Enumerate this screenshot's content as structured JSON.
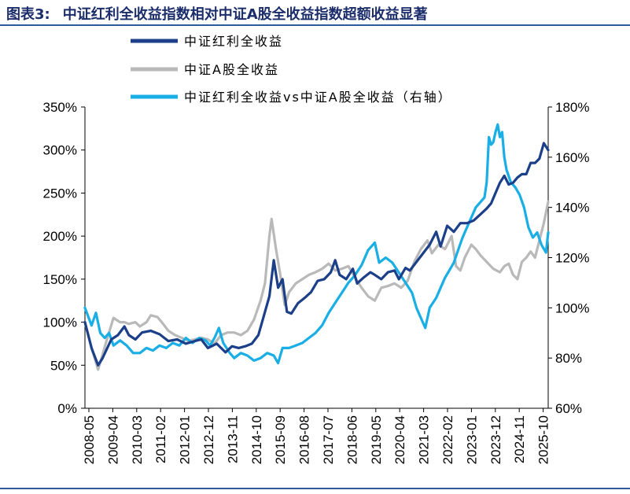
{
  "title": {
    "lead": "图表3:",
    "text": "中证红利全收益指数相对中证A股全收益指数超额收益显著"
  },
  "chart_data": {
    "type": "line",
    "x_tick_labels": [
      "2008-05",
      "2009-04",
      "2010-03",
      "2011-02",
      "2012-01",
      "2012-12",
      "2013-11",
      "2014-10",
      "2015-09",
      "2016-08",
      "2017-07",
      "2018-06",
      "2019-05",
      "2020-04",
      "2021-03",
      "2022-02",
      "2023-01",
      "2023-12",
      "2024-11",
      "2025-10"
    ],
    "x_range": [
      0,
      211
    ],
    "y_left": {
      "min": 0,
      "max": 350,
      "ticks": [
        0,
        50,
        100,
        150,
        200,
        250,
        300,
        350
      ],
      "tick_labels": [
        "0%",
        "50%",
        "100%",
        "150%",
        "200%",
        "250%",
        "300%",
        "350%"
      ]
    },
    "y_right": {
      "min": 60,
      "max": 180,
      "ticks": [
        60,
        80,
        100,
        120,
        140,
        160,
        180
      ],
      "tick_labels": [
        "60%",
        "80%",
        "100%",
        "120%",
        "140%",
        "160%",
        "180%"
      ]
    },
    "series": [
      {
        "name": "中证红利全收益",
        "axis": "left",
        "color": "#1c3f8a",
        "points": [
          [
            0,
            100
          ],
          [
            3,
            70
          ],
          [
            6,
            50
          ],
          [
            8,
            58
          ],
          [
            12,
            80
          ],
          [
            15,
            85
          ],
          [
            18,
            95
          ],
          [
            20,
            85
          ],
          [
            23,
            80
          ],
          [
            26,
            88
          ],
          [
            30,
            90
          ],
          [
            34,
            86
          ],
          [
            38,
            78
          ],
          [
            42,
            80
          ],
          [
            46,
            75
          ],
          [
            50,
            78
          ],
          [
            53,
            80
          ],
          [
            56,
            70
          ],
          [
            60,
            75
          ],
          [
            64,
            65
          ],
          [
            67,
            72
          ],
          [
            70,
            70
          ],
          [
            73,
            72
          ],
          [
            76,
            75
          ],
          [
            79,
            85
          ],
          [
            82,
            112
          ],
          [
            84,
            130
          ],
          [
            86,
            172
          ],
          [
            88,
            140
          ],
          [
            90,
            150
          ],
          [
            92,
            112
          ],
          [
            94,
            110
          ],
          [
            97,
            122
          ],
          [
            100,
            128
          ],
          [
            103,
            135
          ],
          [
            106,
            148
          ],
          [
            109,
            150
          ],
          [
            112,
            158
          ],
          [
            114,
            172
          ],
          [
            116,
            155
          ],
          [
            119,
            150
          ],
          [
            122,
            162
          ],
          [
            124,
            145
          ],
          [
            127,
            152
          ],
          [
            130,
            158
          ],
          [
            132,
            155
          ],
          [
            135,
            150
          ],
          [
            138,
            158
          ],
          [
            141,
            160
          ],
          [
            143,
            150
          ],
          [
            146,
            163
          ],
          [
            148,
            160
          ],
          [
            151,
            170
          ],
          [
            154,
            180
          ],
          [
            157,
            190
          ],
          [
            160,
            205
          ],
          [
            162,
            188
          ],
          [
            165,
            212
          ],
          [
            168,
            205
          ],
          [
            171,
            215
          ],
          [
            174,
            215
          ],
          [
            177,
            218
          ],
          [
            180,
            225
          ],
          [
            183,
            232
          ],
          [
            185,
            238
          ],
          [
            187,
            250
          ],
          [
            189,
            262
          ],
          [
            191,
            270
          ],
          [
            193,
            260
          ],
          [
            195,
            262
          ],
          [
            197,
            268
          ],
          [
            199,
            272
          ],
          [
            201,
            272
          ],
          [
            203,
            285
          ],
          [
            205,
            285
          ],
          [
            207,
            290
          ],
          [
            209,
            308
          ],
          [
            211,
            300
          ]
        ]
      },
      {
        "name": "中证A股全收益",
        "axis": "left",
        "color": "#b9b9b9",
        "points": [
          [
            0,
            100
          ],
          [
            3,
            70
          ],
          [
            6,
            45
          ],
          [
            8,
            62
          ],
          [
            10,
            80
          ],
          [
            13,
            105
          ],
          [
            16,
            100
          ],
          [
            18,
            100
          ],
          [
            20,
            98
          ],
          [
            23,
            100
          ],
          [
            25,
            95
          ],
          [
            28,
            100
          ],
          [
            30,
            108
          ],
          [
            33,
            106
          ],
          [
            35,
            100
          ],
          [
            38,
            90
          ],
          [
            41,
            85
          ],
          [
            44,
            82
          ],
          [
            47,
            78
          ],
          [
            50,
            80
          ],
          [
            53,
            82
          ],
          [
            56,
            80
          ],
          [
            59,
            75
          ],
          [
            62,
            85
          ],
          [
            65,
            88
          ],
          [
            68,
            88
          ],
          [
            71,
            85
          ],
          [
            74,
            90
          ],
          [
            77,
            103
          ],
          [
            80,
            125
          ],
          [
            82,
            145
          ],
          [
            84,
            200
          ],
          [
            85,
            220
          ],
          [
            87,
            185
          ],
          [
            89,
            155
          ],
          [
            91,
            120
          ],
          [
            93,
            135
          ],
          [
            96,
            145
          ],
          [
            99,
            150
          ],
          [
            102,
            155
          ],
          [
            105,
            158
          ],
          [
            108,
            162
          ],
          [
            111,
            168
          ],
          [
            114,
            160
          ],
          [
            117,
            162
          ],
          [
            120,
            165
          ],
          [
            123,
            152
          ],
          [
            126,
            140
          ],
          [
            129,
            130
          ],
          [
            132,
            125
          ],
          [
            135,
            140
          ],
          [
            138,
            142
          ],
          [
            141,
            145
          ],
          [
            144,
            140
          ],
          [
            147,
            148
          ],
          [
            150,
            170
          ],
          [
            153,
            185
          ],
          [
            156,
            195
          ],
          [
            158,
            180
          ],
          [
            161,
            190
          ],
          [
            164,
            185
          ],
          [
            167,
            200
          ],
          [
            169,
            165
          ],
          [
            171,
            160
          ],
          [
            173,
            175
          ],
          [
            176,
            190
          ],
          [
            178,
            185
          ],
          [
            180,
            178
          ],
          [
            183,
            170
          ],
          [
            186,
            162
          ],
          [
            189,
            158
          ],
          [
            191,
            165
          ],
          [
            193,
            168
          ],
          [
            195,
            155
          ],
          [
            197,
            150
          ],
          [
            199,
            170
          ],
          [
            201,
            175
          ],
          [
            203,
            182
          ],
          [
            205,
            175
          ],
          [
            207,
            195
          ],
          [
            209,
            215
          ],
          [
            211,
            240
          ]
        ]
      },
      {
        "name": "中证红利全收益vs中证A股全收益（右轴）",
        "axis": "right",
        "color": "#19aee5",
        "points": [
          [
            0,
            100
          ],
          [
            3,
            93
          ],
          [
            5,
            98
          ],
          [
            7,
            90
          ],
          [
            9,
            88
          ],
          [
            11,
            90
          ],
          [
            13,
            85
          ],
          [
            16,
            87
          ],
          [
            19,
            85
          ],
          [
            22,
            82
          ],
          [
            25,
            82
          ],
          [
            28,
            84
          ],
          [
            31,
            83
          ],
          [
            34,
            85
          ],
          [
            37,
            84
          ],
          [
            40,
            86
          ],
          [
            43,
            85
          ],
          [
            46,
            88
          ],
          [
            49,
            86
          ],
          [
            52,
            88
          ],
          [
            55,
            87
          ],
          [
            57,
            85
          ],
          [
            59,
            88
          ],
          [
            61,
            92
          ],
          [
            63,
            86
          ],
          [
            66,
            82
          ],
          [
            68,
            80
          ],
          [
            71,
            82
          ],
          [
            74,
            81
          ],
          [
            77,
            79
          ],
          [
            80,
            80
          ],
          [
            83,
            82
          ],
          [
            86,
            81
          ],
          [
            88,
            78
          ],
          [
            90,
            84
          ],
          [
            93,
            84
          ],
          [
            96,
            85
          ],
          [
            99,
            86
          ],
          [
            102,
            88
          ],
          [
            105,
            90
          ],
          [
            108,
            93
          ],
          [
            111,
            98
          ],
          [
            114,
            102
          ],
          [
            117,
            106
          ],
          [
            120,
            110
          ],
          [
            123,
            113
          ],
          [
            126,
            117
          ],
          [
            129,
            123
          ],
          [
            132,
            126
          ],
          [
            134,
            118
          ],
          [
            137,
            120
          ],
          [
            140,
            118
          ],
          [
            143,
            114
          ],
          [
            146,
            110
          ],
          [
            149,
            106
          ],
          [
            151,
            100
          ],
          [
            153,
            96
          ],
          [
            155,
            92
          ],
          [
            157,
            100
          ],
          [
            160,
            104
          ],
          [
            162,
            108
          ],
          [
            164,
            112
          ],
          [
            166,
            115
          ],
          [
            168,
            118
          ],
          [
            170,
            123
          ],
          [
            172,
            128
          ],
          [
            174,
            132
          ],
          [
            176,
            136
          ],
          [
            178,
            140
          ],
          [
            180,
            142
          ],
          [
            182,
            144
          ],
          [
            183,
            150
          ],
          [
            184,
            168
          ],
          [
            185,
            165
          ],
          [
            186,
            166
          ],
          [
            187,
            170
          ],
          [
            188,
            173
          ],
          [
            189,
            168
          ],
          [
            190,
            170
          ],
          [
            191,
            160
          ],
          [
            192,
            155
          ],
          [
            194,
            150
          ],
          [
            196,
            148
          ],
          [
            198,
            145
          ],
          [
            200,
            140
          ],
          [
            202,
            132
          ],
          [
            204,
            128
          ],
          [
            206,
            130
          ],
          [
            208,
            125
          ],
          [
            210,
            122
          ],
          [
            211,
            130
          ]
        ]
      }
    ]
  }
}
